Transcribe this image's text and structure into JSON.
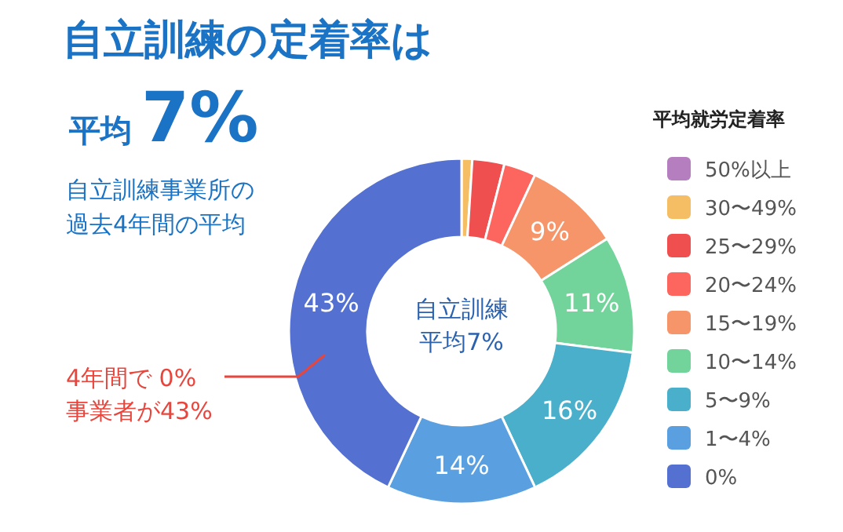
{
  "chart_data": {
    "type": "donut",
    "title": "自立訓練の定着率は",
    "subtitle": "平均7%",
    "categories": [
      "50%以上",
      "30〜49%",
      "25〜29%",
      "20〜24%",
      "15〜19%",
      "10〜14%",
      "5〜9%",
      "1〜4%",
      "0%"
    ],
    "values": [
      0,
      1,
      3,
      3,
      9,
      11,
      16,
      14,
      43
    ],
    "colors": [
      "#b57fbf",
      "#f5be65",
      "#ef4f4f",
      "#fd665f",
      "#f7956a",
      "#72d49a",
      "#4aafca",
      "#5aa0e0",
      "#5470d0"
    ],
    "value_labels": [
      null,
      null,
      null,
      null,
      "9%",
      "11%",
      "16%",
      "14%",
      "43%"
    ],
    "legend": "right",
    "legend_title": "平均就労定着率",
    "annotations": [
      "自立訓練事業所の",
      "過去4年間の平均",
      "自立訓練",
      "平均7%",
      "4年間で 0%",
      "事業者が43%"
    ]
  }
}
